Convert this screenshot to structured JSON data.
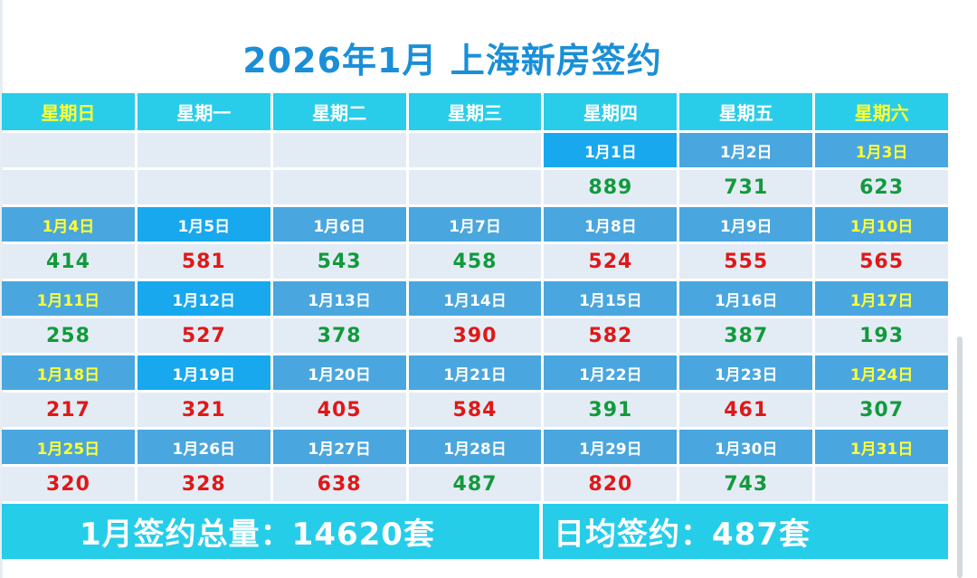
{
  "title": "2026年1月 上海新房签约",
  "weekdays": [
    "星期日",
    "星期一",
    "星期二",
    "星期三",
    "星期四",
    "星期五",
    "星期六"
  ],
  "weeks": [
    {
      "dates": [
        "",
        "",
        "",
        "",
        "1月1日",
        "1月2日",
        "1月3日"
      ],
      "values": [
        "",
        "",
        "",
        "",
        "889",
        "731",
        "623"
      ],
      "trend": [
        "",
        "",
        "",
        "",
        "down",
        "down",
        "down"
      ]
    },
    {
      "dates": [
        "1月4日",
        "1月5日",
        "1月6日",
        "1月7日",
        "1月8日",
        "1月9日",
        "1月10日"
      ],
      "values": [
        "414",
        "581",
        "543",
        "458",
        "524",
        "555",
        "565"
      ],
      "trend": [
        "down",
        "up",
        "down",
        "down",
        "up",
        "up",
        "up"
      ]
    },
    {
      "dates": [
        "1月11日",
        "1月12日",
        "1月13日",
        "1月14日",
        "1月15日",
        "1月16日",
        "1月17日"
      ],
      "values": [
        "258",
        "527",
        "378",
        "390",
        "582",
        "387",
        "193"
      ],
      "trend": [
        "down",
        "up",
        "down",
        "up",
        "up",
        "down",
        "down"
      ]
    },
    {
      "dates": [
        "1月18日",
        "1月19日",
        "1月20日",
        "1月21日",
        "1月22日",
        "1月23日",
        "1月24日"
      ],
      "values": [
        "217",
        "321",
        "405",
        "584",
        "391",
        "461",
        "307"
      ],
      "trend": [
        "up",
        "up",
        "up",
        "up",
        "down",
        "up",
        "down"
      ]
    },
    {
      "dates": [
        "1月25日",
        "1月26日",
        "1月27日",
        "1月28日",
        "1月29日",
        "1月30日",
        "1月31日"
      ],
      "values": [
        "320",
        "328",
        "638",
        "487",
        "820",
        "743",
        ""
      ],
      "trend": [
        "up",
        "up",
        "up",
        "down",
        "up",
        "down",
        ""
      ]
    }
  ],
  "summary": {
    "total": "1月签约总量：14620套",
    "average": "日均签约：487套"
  },
  "colors": {
    "title": "#1a8fd8",
    "header_bg": "#29cde9",
    "date_bg": "#4aa6de",
    "date_bg_highlight": "#18a8ee",
    "value_bg": "#e3ecf5",
    "weekend_text": "#ffff33",
    "up_red": "#e01818",
    "down_green": "#129a3c"
  }
}
